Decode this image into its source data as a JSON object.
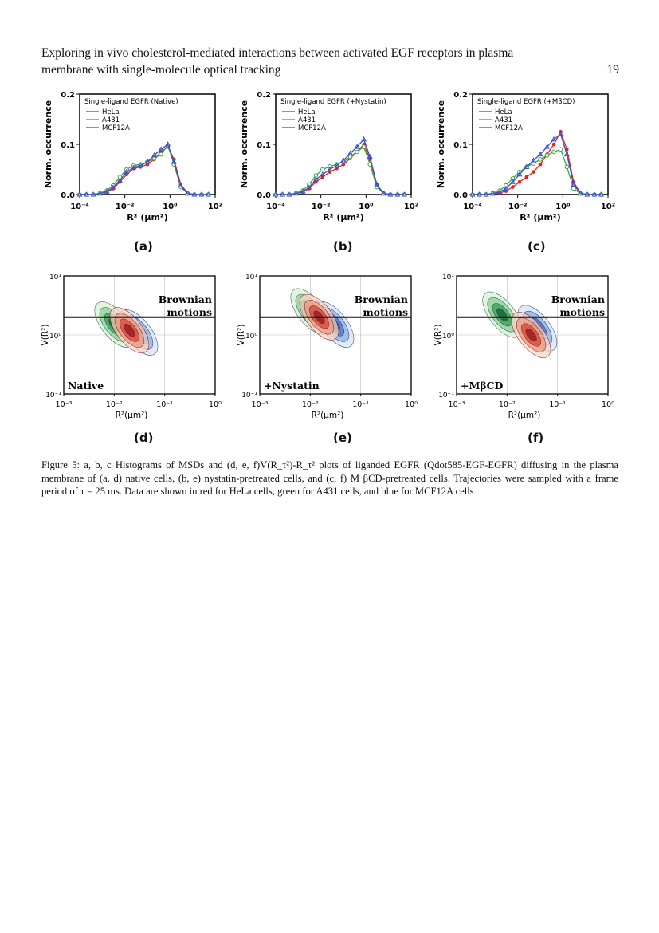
{
  "header": {
    "title_line1": "Exploring in vivo cholesterol-mediated interactions between activated EGF receptors in plasma",
    "title_line2": "membrane with single-molecule optical tracking",
    "page_number": "19"
  },
  "colors": {
    "HeLa": "#e0231c",
    "A431": "#3aa33a",
    "MCF12A": "#3a4fd0"
  },
  "histograms": [
    {
      "label": "(a)",
      "chart_data": {
        "type": "line",
        "title": "Single-ligand EGFR (Native)",
        "xlabel": "R² (µm²)",
        "ylabel": "Norm. occurrence",
        "xscale": "log",
        "xlim": [
          0.0001,
          100
        ],
        "ylim": [
          0,
          0.2
        ],
        "xticks": [
          "10⁻⁴",
          "10⁻²",
          "10⁰",
          "10²"
        ],
        "yticks": [
          "0.0",
          "0.1",
          "0.2"
        ],
        "x": [
          0.0001,
          0.0002,
          0.0004,
          0.0008,
          0.0016,
          0.003,
          0.006,
          0.012,
          0.025,
          0.05,
          0.1,
          0.2,
          0.4,
          0.8,
          1.5,
          3,
          6,
          12,
          25,
          50
        ],
        "series": [
          {
            "name": "HeLa",
            "values": [
              0,
              0,
              0,
              0.002,
              0.005,
              0.012,
              0.025,
              0.04,
              0.052,
              0.055,
              0.06,
              0.07,
              0.085,
              0.095,
              0.07,
              0.02,
              0.003,
              0,
              0,
              0
            ]
          },
          {
            "name": "A431",
            "values": [
              0,
              0,
              0,
              0.003,
              0.008,
              0.018,
              0.035,
              0.05,
              0.058,
              0.06,
              0.065,
              0.072,
              0.08,
              0.098,
              0.06,
              0.015,
              0.002,
              0,
              0,
              0
            ]
          },
          {
            "name": "MCF12A",
            "values": [
              0,
              0,
              0,
              0.002,
              0.006,
              0.014,
              0.028,
              0.045,
              0.054,
              0.058,
              0.065,
              0.078,
              0.09,
              0.1,
              0.065,
              0.018,
              0.002,
              0,
              0,
              0
            ]
          }
        ]
      }
    },
    {
      "label": "(b)",
      "chart_data": {
        "type": "line",
        "title": "Single-ligand EGFR (+Nystatin)",
        "xlabel": "R² (µm²)",
        "ylabel": "Norm. occurrence",
        "xscale": "log",
        "xlim": [
          0.0001,
          100
        ],
        "ylim": [
          0,
          0.2
        ],
        "xticks": [
          "10⁻⁴",
          "10⁻²",
          "10⁰",
          "10²"
        ],
        "yticks": [
          "0.0",
          "0.1",
          "0.2"
        ],
        "x": [
          0.0001,
          0.0002,
          0.0004,
          0.0008,
          0.0016,
          0.003,
          0.006,
          0.012,
          0.025,
          0.05,
          0.1,
          0.2,
          0.4,
          0.8,
          1.5,
          3,
          6,
          12,
          25,
          50
        ],
        "series": [
          {
            "name": "HeLa",
            "values": [
              0,
              0,
              0,
              0.002,
              0.005,
              0.012,
              0.025,
              0.035,
              0.045,
              0.052,
              0.06,
              0.072,
              0.085,
              0.1,
              0.07,
              0.02,
              0.003,
              0,
              0,
              0
            ]
          },
          {
            "name": "A431",
            "values": [
              0,
              0,
              0,
              0.003,
              0.008,
              0.02,
              0.038,
              0.05,
              0.056,
              0.06,
              0.065,
              0.075,
              0.085,
              0.095,
              0.06,
              0.015,
              0.002,
              0,
              0,
              0
            ]
          },
          {
            "name": "MCF12A",
            "values": [
              0,
              0,
              0,
              0.002,
              0.006,
              0.014,
              0.03,
              0.04,
              0.05,
              0.058,
              0.068,
              0.082,
              0.095,
              0.11,
              0.075,
              0.02,
              0.002,
              0,
              0,
              0
            ]
          }
        ]
      }
    },
    {
      "label": "(c)",
      "chart_data": {
        "type": "line",
        "title": "Single-ligand EGFR (+MβCD)",
        "xlabel": "R² (µm²)",
        "ylabel": "Norm. occurrence",
        "xscale": "log",
        "xlim": [
          0.0001,
          100
        ],
        "ylim": [
          0,
          0.2
        ],
        "xticks": [
          "10⁻⁴",
          "10⁻²",
          "10⁰",
          "10²"
        ],
        "yticks": [
          "0.0",
          "0.1",
          "0.2"
        ],
        "x": [
          0.0001,
          0.0002,
          0.0004,
          0.0008,
          0.0016,
          0.003,
          0.006,
          0.012,
          0.025,
          0.05,
          0.1,
          0.2,
          0.4,
          0.8,
          1.5,
          3,
          6,
          12,
          25,
          50
        ],
        "series": [
          {
            "name": "HeLa",
            "values": [
              0,
              0,
              0,
              0.001,
              0.003,
              0.007,
              0.015,
              0.025,
              0.035,
              0.045,
              0.06,
              0.08,
              0.1,
              0.125,
              0.09,
              0.025,
              0.003,
              0,
              0,
              0
            ]
          },
          {
            "name": "A431",
            "values": [
              0,
              0,
              0,
              0.003,
              0.008,
              0.018,
              0.032,
              0.045,
              0.055,
              0.062,
              0.07,
              0.078,
              0.085,
              0.09,
              0.055,
              0.012,
              0.002,
              0,
              0,
              0
            ]
          },
          {
            "name": "MCF12A",
            "values": [
              0,
              0,
              0,
              0.002,
              0.005,
              0.012,
              0.025,
              0.04,
              0.055,
              0.068,
              0.08,
              0.095,
              0.11,
              0.12,
              0.08,
              0.02,
              0.002,
              0,
              0,
              0
            ]
          }
        ]
      }
    }
  ],
  "contours": [
    {
      "label": "(d)",
      "condition": "Native",
      "chart_data": {
        "type": "contour",
        "xlabel": "R²(μm²)",
        "ylabel": "V(R²)",
        "xscale": "log",
        "yscale": "log",
        "xlim": [
          0.001,
          1
        ],
        "ylim": [
          0.1,
          10
        ],
        "xticks": [
          "10⁻³",
          "10⁻²",
          "10⁻¹",
          "10⁰"
        ],
        "yticks": [
          "10⁻¹",
          "10⁰",
          "10¹"
        ],
        "annotation": "Brownian motions",
        "brownian_line_y": 2,
        "centers": [
          {
            "cell": "HeLa",
            "x": 0.02,
            "y": 1.2
          },
          {
            "cell": "A431",
            "x": 0.01,
            "y": 1.5
          },
          {
            "cell": "MCF12A",
            "x": 0.03,
            "y": 1.1
          }
        ]
      }
    },
    {
      "label": "(e)",
      "condition": "+Nystatin",
      "chart_data": {
        "type": "contour",
        "xlabel": "R²(μm²)",
        "ylabel": "V(R²)",
        "xscale": "log",
        "yscale": "log",
        "xlim": [
          0.001,
          1
        ],
        "ylim": [
          0.1,
          10
        ],
        "xticks": [
          "10⁻³",
          "10⁻²",
          "10⁻¹",
          "10⁰"
        ],
        "yticks": [
          "10⁻¹",
          "10⁰",
          "10¹"
        ],
        "annotation": "Brownian motions",
        "brownian_line_y": 2,
        "centers": [
          {
            "cell": "HeLa",
            "x": 0.015,
            "y": 2.0
          },
          {
            "cell": "A431",
            "x": 0.01,
            "y": 2.5
          },
          {
            "cell": "MCF12A",
            "x": 0.03,
            "y": 1.5
          }
        ]
      }
    },
    {
      "label": "(f)",
      "condition": "+MβCD",
      "chart_data": {
        "type": "contour",
        "xlabel": "R²(μm²)",
        "ylabel": "V(R²)",
        "xscale": "log",
        "yscale": "log",
        "xlim": [
          0.001,
          1
        ],
        "ylim": [
          0.1,
          10
        ],
        "xticks": [
          "10⁻³",
          "10⁻²",
          "10⁻¹",
          "10⁰"
        ],
        "yticks": [
          "10⁻¹",
          "10⁰",
          "10¹"
        ],
        "annotation": "Brownian motions",
        "brownian_line_y": 2,
        "centers": [
          {
            "cell": "HeLa",
            "x": 0.03,
            "y": 1.0
          },
          {
            "cell": "A431",
            "x": 0.008,
            "y": 2.2
          },
          {
            "cell": "MCF12A",
            "x": 0.04,
            "y": 1.3
          }
        ]
      }
    }
  ],
  "caption": {
    "text": "Figure 5: a, b, c Histograms of MSDs and (d, e, f)V(R_τ²)-R_τ² plots of liganded EGFR (Qdot585-EGF-EGFR) diffusing in the plasma membrane of (a, d) native cells, (b, e) nystatin-pretreated cells, and (c, f) M βCD-pretreated cells. Trajectories were sampled with a frame period of τ = 25 ms. Data are shown in red for HeLa cells, green for A431 cells, and blue for MCF12A cells"
  }
}
